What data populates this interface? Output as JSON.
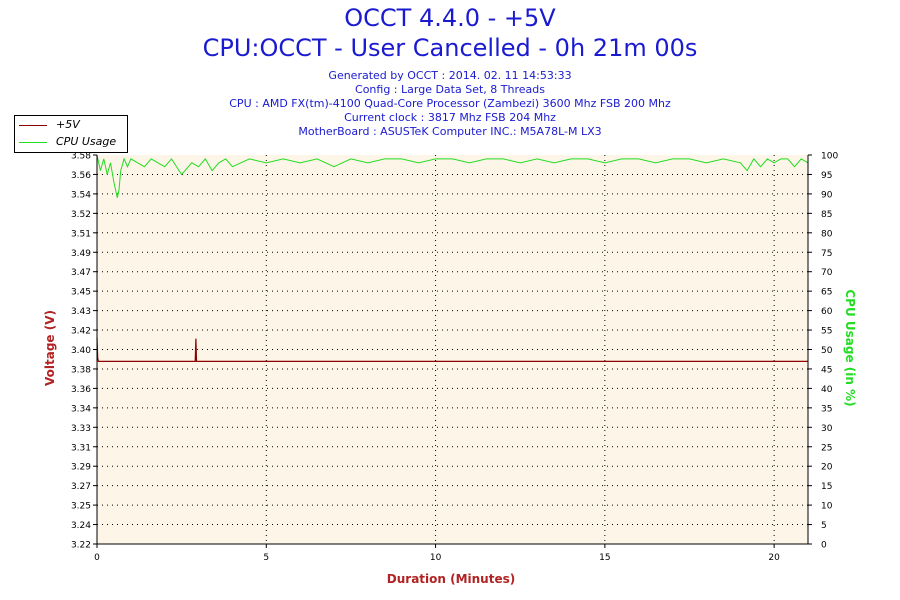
{
  "title": "OCCT 4.4.0 - +5V",
  "subtitle": "CPU:OCCT - User Cancelled - 0h 21m 00s",
  "info_lines": [
    "Generated by OCCT : 2014. 02. 11 14:53:33",
    "Config : Large Data Set, 8 Threads",
    "CPU : AMD FX(tm)-4100 Quad-Core Processor (Zambezi) 3600 Mhz FSB 200 Mhz",
    "Current clock : 3817 Mhz FSB 204 Mhz",
    "MotherBoard : ASUSTeK Computer INC.: M5A78L-M LX3"
  ],
  "colors": {
    "voltage": "#8b0000",
    "cpu": "#22dd22",
    "title": "#1a1ad0",
    "plot_bg": "#fdf6e8"
  },
  "chart_data": {
    "type": "line",
    "xlabel": "Duration (Minutes)",
    "ylabel": "Voltage (V)",
    "y2label": "CPU Usage (in %)",
    "xlim": [
      0,
      21
    ],
    "ylim": [
      3.22,
      3.58
    ],
    "y2lim": [
      0,
      100
    ],
    "x_ticks": [
      "0",
      "5",
      "10",
      "15",
      "20"
    ],
    "y_ticks": [
      "3.22",
      "3.24",
      "3.25",
      "3.27",
      "3.29",
      "3.31",
      "3.33",
      "3.34",
      "3.36",
      "3.38",
      "3.40",
      "3.42",
      "3.43",
      "3.45",
      "3.47",
      "3.49",
      "3.51",
      "3.52",
      "3.54",
      "3.56",
      "3.58"
    ],
    "y2_ticks": [
      "0",
      "5",
      "10",
      "15",
      "20",
      "25",
      "30",
      "35",
      "40",
      "45",
      "50",
      "55",
      "60",
      "65",
      "70",
      "75",
      "80",
      "85",
      "90",
      "95",
      "100"
    ],
    "grid": true,
    "legend_position": "top-left",
    "series": [
      {
        "name": "+5V",
        "axis": "left",
        "x": [
          0,
          0.02,
          0.04,
          0.06,
          2.9,
          2.92,
          2.94,
          21
        ],
        "y": [
          3.411,
          3.392,
          3.389,
          3.389,
          3.389,
          3.41,
          3.389,
          3.389
        ]
      },
      {
        "name": "CPU Usage",
        "axis": "right",
        "x": [
          0,
          0.1,
          0.2,
          0.3,
          0.4,
          0.5,
          0.6,
          0.65,
          0.7,
          0.8,
          0.9,
          1.0,
          1.2,
          1.4,
          1.6,
          1.8,
          2.0,
          2.2,
          2.5,
          2.8,
          3.0,
          3.2,
          3.4,
          3.6,
          3.8,
          4.0,
          4.5,
          5.0,
          5.5,
          6.0,
          6.5,
          7.0,
          7.5,
          8.0,
          8.5,
          9.0,
          9.5,
          10.0,
          10.5,
          11.0,
          11.5,
          12.0,
          12.5,
          13.0,
          13.5,
          14.0,
          14.5,
          15.0,
          15.5,
          16.0,
          16.5,
          17.0,
          17.5,
          18.0,
          18.5,
          19.0,
          19.2,
          19.4,
          19.6,
          19.8,
          20.0,
          20.2,
          20.4,
          20.6,
          20.8,
          21.0
        ],
        "y": [
          100,
          96,
          99,
          95,
          98,
          93,
          89,
          91,
          96,
          99,
          97,
          99,
          98,
          97,
          99,
          98,
          97,
          99,
          95,
          98,
          97,
          99,
          96,
          98,
          99,
          97,
          99,
          98,
          99,
          98,
          99,
          97,
          99,
          98,
          99,
          99,
          98,
          99,
          99,
          98,
          99,
          99,
          98,
          99,
          98,
          99,
          99,
          98,
          99,
          99,
          98,
          99,
          99,
          98,
          99,
          98,
          96,
          99,
          97,
          99,
          98,
          99,
          99,
          97,
          99,
          98
        ]
      }
    ]
  }
}
